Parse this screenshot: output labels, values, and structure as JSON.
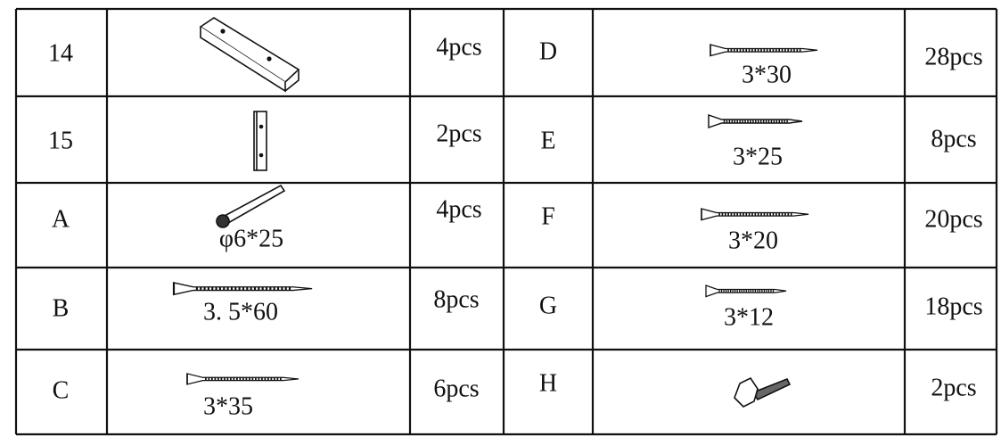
{
  "table": {
    "rows": [
      {
        "left": {
          "id": "14",
          "qty": "4pcs"
        },
        "right": {
          "id": "D",
          "size": "3*30",
          "qty": "28pcs"
        }
      },
      {
        "left": {
          "id": "15",
          "qty": "2pcs"
        },
        "right": {
          "id": "E",
          "size": "3*25",
          "qty": "8pcs"
        }
      },
      {
        "left": {
          "id": "A",
          "size": "φ6*25",
          "qty": "4pcs"
        },
        "right": {
          "id": "F",
          "size": "3*20",
          "qty": "20pcs"
        }
      },
      {
        "left": {
          "id": "B",
          "size": "3. 5*60",
          "qty": "8pcs"
        },
        "right": {
          "id": "G",
          "size": "3*12",
          "qty": "18pcs"
        }
      },
      {
        "left": {
          "id": "C",
          "size": "3*35",
          "qty": "6pcs"
        },
        "right": {
          "id": "H",
          "qty": "2pcs"
        }
      }
    ]
  }
}
